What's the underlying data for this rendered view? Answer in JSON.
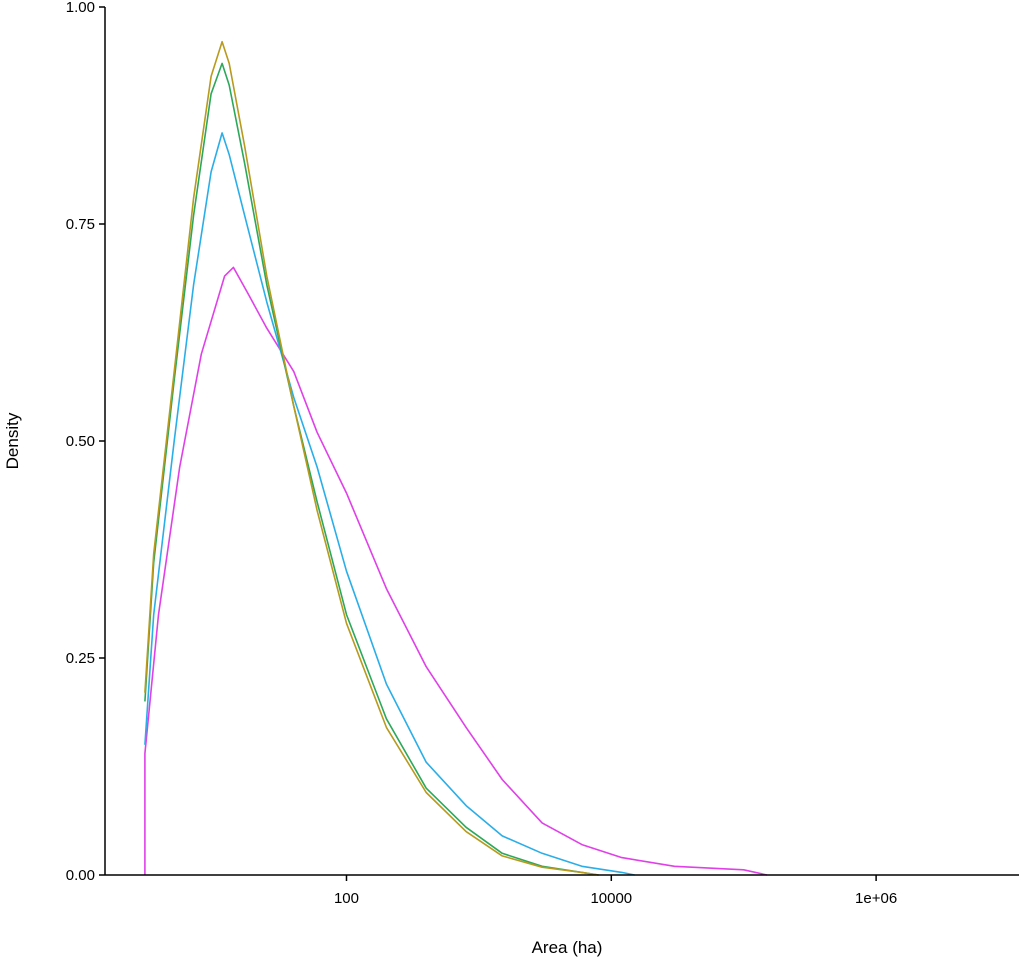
{
  "chart_data": {
    "type": "line",
    "title": "",
    "xlabel": "Area (ha)",
    "ylabel": "Density",
    "x_scale": "log10",
    "xlim": [
      1.5,
      12000000
    ],
    "ylim": [
      0,
      1
    ],
    "grid": false,
    "x_ticks": [
      {
        "value": 100,
        "label": "100"
      },
      {
        "value": 10000,
        "label": "10000"
      },
      {
        "value": 1000000,
        "label": "1e+06"
      }
    ],
    "y_ticks": [
      {
        "value": 0,
        "label": "0.00"
      },
      {
        "value": 0.25,
        "label": "0.25"
      },
      {
        "value": 0.5,
        "label": "0.50"
      },
      {
        "value": 0.75,
        "label": "0.75"
      },
      {
        "value": 1,
        "label": "1.00"
      }
    ],
    "series": [
      {
        "color": "#e040e8",
        "points": [
          [
            3,
            0.0
          ],
          [
            3,
            0.14
          ],
          [
            3.8,
            0.3
          ],
          [
            5.5,
            0.47
          ],
          [
            8,
            0.6
          ],
          [
            12,
            0.69
          ],
          [
            14,
            0.7
          ],
          [
            18,
            0.67
          ],
          [
            25,
            0.63
          ],
          [
            40,
            0.58
          ],
          [
            60,
            0.51
          ],
          [
            100,
            0.44
          ],
          [
            200,
            0.33
          ],
          [
            400,
            0.24
          ],
          [
            800,
            0.17
          ],
          [
            1500,
            0.11
          ],
          [
            3000,
            0.06
          ],
          [
            6000,
            0.035
          ],
          [
            12000,
            0.02
          ],
          [
            30000,
            0.01
          ],
          [
            100000,
            0.006
          ],
          [
            150000,
            0.0
          ]
        ]
      },
      {
        "color": "#2aaee8",
        "points": [
          [
            3,
            0.15
          ],
          [
            3.5,
            0.3
          ],
          [
            5,
            0.5
          ],
          [
            7,
            0.68
          ],
          [
            9.5,
            0.81
          ],
          [
            11.5,
            0.855
          ],
          [
            13,
            0.83
          ],
          [
            17,
            0.76
          ],
          [
            25,
            0.66
          ],
          [
            40,
            0.55
          ],
          [
            60,
            0.47
          ],
          [
            100,
            0.35
          ],
          [
            200,
            0.22
          ],
          [
            400,
            0.13
          ],
          [
            800,
            0.08
          ],
          [
            1500,
            0.045
          ],
          [
            3000,
            0.025
          ],
          [
            6000,
            0.01
          ],
          [
            12000,
            0.003
          ],
          [
            15000,
            0.0
          ]
        ]
      },
      {
        "color": "#2ca85a",
        "points": [
          [
            3,
            0.2
          ],
          [
            3.5,
            0.36
          ],
          [
            5,
            0.57
          ],
          [
            7,
            0.76
          ],
          [
            9.5,
            0.9
          ],
          [
            11.5,
            0.935
          ],
          [
            13,
            0.91
          ],
          [
            17,
            0.82
          ],
          [
            25,
            0.68
          ],
          [
            40,
            0.54
          ],
          [
            60,
            0.43
          ],
          [
            100,
            0.3
          ],
          [
            200,
            0.18
          ],
          [
            400,
            0.1
          ],
          [
            800,
            0.055
          ],
          [
            1500,
            0.025
          ],
          [
            3000,
            0.01
          ],
          [
            6000,
            0.003
          ],
          [
            8000,
            0.0
          ]
        ]
      },
      {
        "color": "#b89a1e",
        "points": [
          [
            3,
            0.21
          ],
          [
            3.5,
            0.37
          ],
          [
            5,
            0.58
          ],
          [
            7,
            0.78
          ],
          [
            9.5,
            0.92
          ],
          [
            11.5,
            0.96
          ],
          [
            13,
            0.935
          ],
          [
            17,
            0.84
          ],
          [
            25,
            0.69
          ],
          [
            40,
            0.54
          ],
          [
            60,
            0.42
          ],
          [
            100,
            0.29
          ],
          [
            200,
            0.17
          ],
          [
            400,
            0.095
          ],
          [
            800,
            0.05
          ],
          [
            1500,
            0.022
          ],
          [
            3000,
            0.009
          ],
          [
            6000,
            0.003
          ],
          [
            8000,
            0.0
          ]
        ]
      }
    ]
  }
}
